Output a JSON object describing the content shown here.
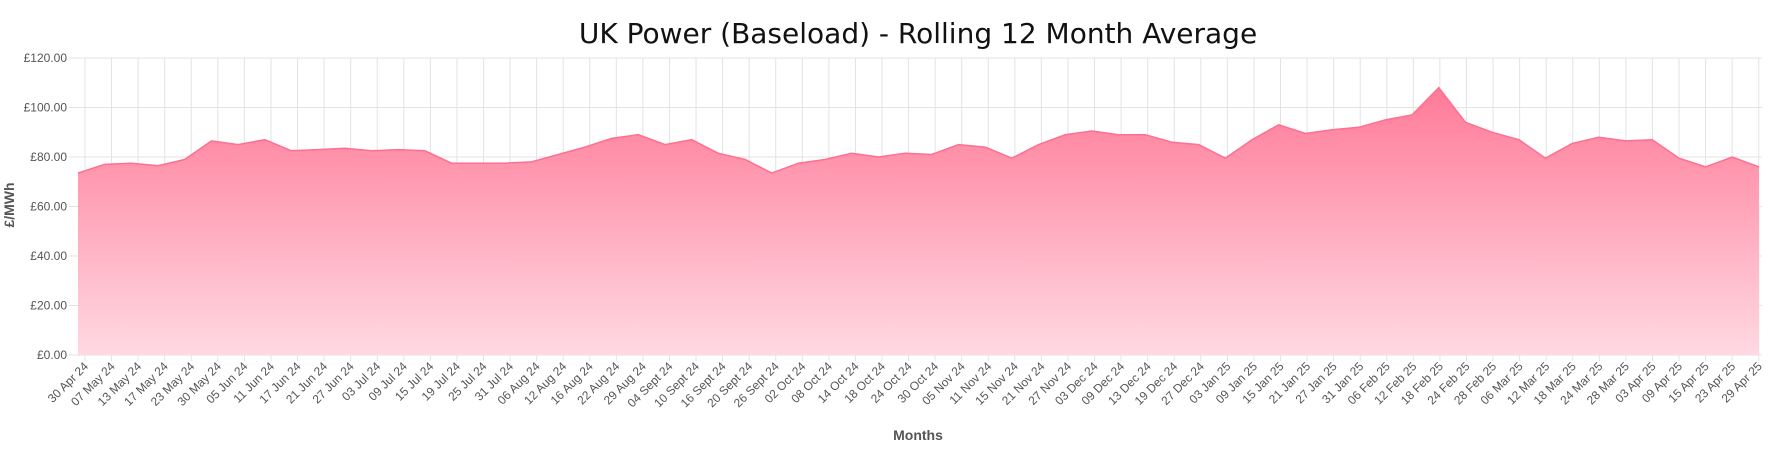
{
  "chart_data": {
    "type": "area",
    "title": "UK Power (Baseload) - Rolling 12 Month Average",
    "xlabel": "Months",
    "ylabel": "£/MWh",
    "ylim": [
      0,
      120
    ],
    "y_ticks": [
      "£0.00",
      "£20.00",
      "£40.00",
      "£60.00",
      "£80.00",
      "£100.00",
      "£120.00"
    ],
    "grid": true,
    "legend": "none",
    "colors": {
      "fill_top": "#ff7a98",
      "fill_bottom": "#ffd9e2",
      "line": "#ff6f8f"
    },
    "x_tick_labels": [
      "30 Apr 24",
      "07 May 24",
      "13 May 24",
      "17 May 24",
      "23 May 24",
      "30 May 24",
      "05 Jun 24",
      "11 Jun 24",
      "17 Jun 24",
      "21 Jun 24",
      "27 Jun 24",
      "03 Jul 24",
      "09 Jul 24",
      "15 Jul 24",
      "19 Jul 24",
      "25 Jul 24",
      "31 Jul 24",
      "06 Aug 24",
      "12 Aug 24",
      "16 Aug 24",
      "22 Aug 24",
      "29 Aug 24",
      "04 Sept 24",
      "10 Sept 24",
      "16 Sept 24",
      "20 Sept 24",
      "26 Sept 24",
      "02 Oct 24",
      "08 Oct 24",
      "14 Oct 24",
      "18 Oct 24",
      "24 Oct 24",
      "30 Oct 24",
      "05 Nov 24",
      "11 Nov 24",
      "15 Nov 24",
      "21 Nov 24",
      "27 Nov 24",
      "03 Dec 24",
      "09 Dec 24",
      "13 Dec 24",
      "19 Dec 24",
      "27 Dec 24",
      "03 Jan 25",
      "09 Jan 25",
      "15 Jan 25",
      "21 Jan 25",
      "27 Jan 25",
      "31 Jan 25",
      "06 Feb 25",
      "12 Feb 25",
      "18 Feb 25",
      "24 Feb 25",
      "28 Feb 25",
      "06 Mar 25",
      "12 Mar 25",
      "18 Mar 25",
      "24 Mar 25",
      "28 Mar 25",
      "03 Apr 25",
      "09 Apr 25",
      "15 Apr 25",
      "23 Apr 25",
      "29 Apr 25"
    ],
    "values": [
      73.5,
      77,
      77.5,
      76.5,
      79,
      86.5,
      85,
      87,
      82.5,
      83,
      83.5,
      82.5,
      83,
      82.5,
      77.5,
      77.5,
      77.5,
      78,
      81,
      84,
      87.5,
      89,
      85,
      87,
      81.5,
      79,
      73.5,
      77.5,
      79,
      81.5,
      80,
      81.5,
      81,
      85,
      84,
      79.5,
      85,
      89,
      90.5,
      89,
      89,
      86,
      85,
      79.5,
      87,
      93,
      89.5,
      91,
      92,
      95,
      97,
      108,
      94,
      90,
      87,
      79.5,
      85.5,
      88,
      86.5,
      87,
      79.5,
      76,
      80,
      76
    ]
  }
}
